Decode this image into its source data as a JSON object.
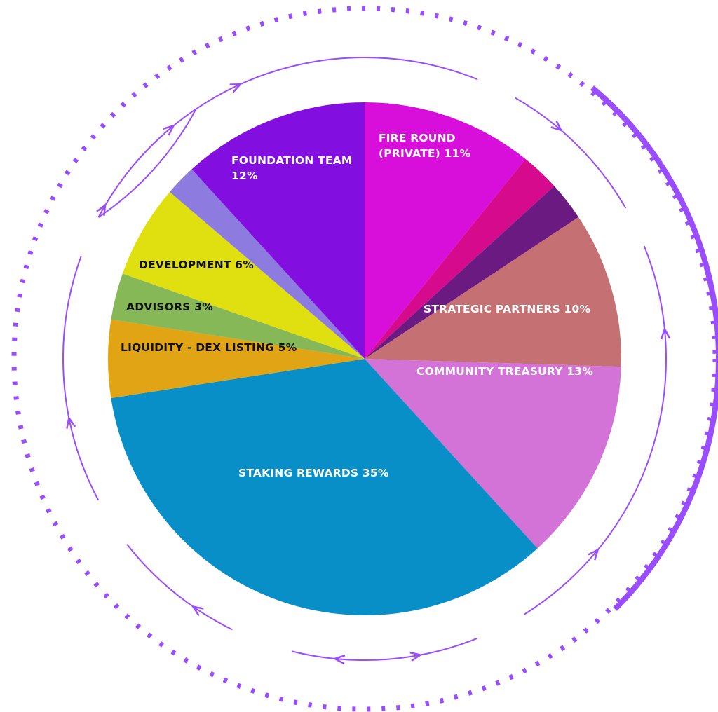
{
  "chart_data": {
    "type": "pie",
    "title": "",
    "start": "top",
    "direction": "clockwise",
    "slices": [
      {
        "name": "FIRE ROUND (PRIVATE)",
        "value": 11,
        "color": "#d80edb",
        "label_lines": [
          "FIRE ROUND",
          "(PRIVATE) 11%"
        ],
        "text_color": "#ffffff"
      },
      {
        "name": "",
        "value": 2.5,
        "color": "#d60a8c",
        "label_lines": [],
        "text_color": "#ffffff"
      },
      {
        "name": "",
        "value": 2.5,
        "color": "#6a1a80",
        "label_lines": [],
        "text_color": "#ffffff"
      },
      {
        "name": "STRATEGIC PARTNERS",
        "value": 10,
        "color": "#c57072",
        "label_lines": [
          "STRATEGIC PARTNERS 10%"
        ],
        "text_color": "#ffffff"
      },
      {
        "name": "COMMUNITY TREASURY",
        "value": 13,
        "color": "#d373d8",
        "label_lines": [
          "COMMUNITY TREASURY 13%"
        ],
        "text_color": "#ffffff"
      },
      {
        "name": "STAKING REWARDS",
        "value": 35,
        "color": "#088fc8",
        "label_lines": [
          "STAKING REWARDS 35%"
        ],
        "text_color": "#ffffff"
      },
      {
        "name": "LIQUIDITY - DEX LISTING",
        "value": 5,
        "color": "#e0a414",
        "label_lines": [
          "LIQUIDITY - DEX LISTING 5%"
        ],
        "text_color": "#111111"
      },
      {
        "name": "ADVISORS",
        "value": 3,
        "color": "#86b858",
        "label_lines": [
          "ADVISORS 3%"
        ],
        "text_color": "#111111"
      },
      {
        "name": "DEVELOPMENT",
        "value": 6,
        "color": "#e0e010",
        "label_lines": [
          "DEVELOPMENT 6%"
        ],
        "text_color": "#111111"
      },
      {
        "name": "",
        "value": 2,
        "color": "#8d7be0",
        "label_lines": [],
        "text_color": "#ffffff"
      },
      {
        "name": "FOUNDATION TEAM",
        "value": 12,
        "color": "#820fe0",
        "label_lines": [
          "FOUNDATION TEAM",
          "12%"
        ],
        "text_color": "#ffffff"
      }
    ]
  },
  "decor": {
    "accent": "#9a4dff"
  }
}
